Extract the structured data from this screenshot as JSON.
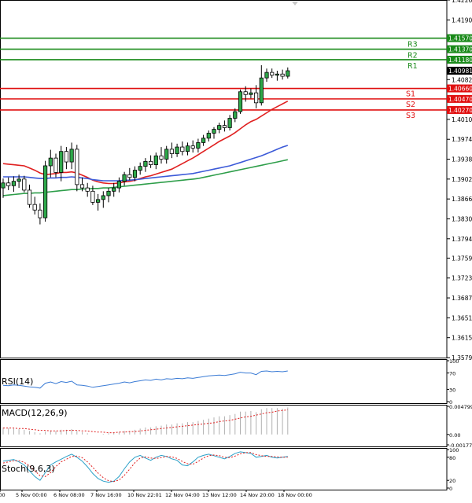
{
  "chart_data": {
    "type": "candlestick",
    "price_axis": {
      "min": 1.3579,
      "max": 1.4226,
      "ticks": [
        "1.42260",
        "1.41900",
        "1.41570",
        "1.41370",
        "1.41180",
        "1.40981",
        "1.40820",
        "1.40660",
        "1.40470",
        "1.40270",
        "1.40100",
        "1.39740",
        "1.39380",
        "1.39020",
        "1.38660",
        "1.38300",
        "1.37940",
        "1.37590",
        "1.37230",
        "1.36870",
        "1.36510",
        "1.36150",
        "1.35790"
      ],
      "tick_values": [
        1.4226,
        1.419,
        1.4157,
        1.4137,
        1.4118,
        1.40981,
        1.4082,
        1.4066,
        1.4047,
        1.4027,
        1.401,
        1.3974,
        1.3938,
        1.3902,
        1.3866,
        1.383,
        1.3794,
        1.3759,
        1.3723,
        1.3687,
        1.3651,
        1.3615,
        1.3579
      ]
    },
    "time_axis": {
      "labels": [
        "0:00",
        "5 Nov 00:00",
        "6 Nov 08:00",
        "7 Nov 16:00",
        "10 Nov 22:01",
        "12 Nov 04:00",
        "13 Nov 12:00",
        "14 Nov 20:00",
        "18 Nov 00:00"
      ]
    },
    "current_price": "1.40981",
    "levels": [
      {
        "name": "R3",
        "value": 1.4157,
        "label": "1.41570",
        "color": "#1a8a1a"
      },
      {
        "name": "R2",
        "value": 1.4137,
        "label": "1.41370",
        "color": "#1a8a1a"
      },
      {
        "name": "R1",
        "value": 1.4118,
        "label": "1.41180",
        "color": "#1a8a1a"
      },
      {
        "name": "S1",
        "value": 1.4066,
        "label": "1.40660",
        "color": "#e01010"
      },
      {
        "name": "S2",
        "value": 1.4047,
        "label": "1.40470",
        "color": "#e01010"
      },
      {
        "name": "S3",
        "value": 1.4027,
        "label": "1.40270",
        "color": "#e01010"
      }
    ],
    "candles": [
      {
        "o": 1.3886,
        "h": 1.3903,
        "l": 1.3868,
        "c": 1.3895
      },
      {
        "o": 1.3895,
        "h": 1.3905,
        "l": 1.3882,
        "c": 1.389
      },
      {
        "o": 1.389,
        "h": 1.3907,
        "l": 1.3879,
        "c": 1.3898
      },
      {
        "o": 1.3898,
        "h": 1.391,
        "l": 1.3886,
        "c": 1.3902
      },
      {
        "o": 1.3902,
        "h": 1.3908,
        "l": 1.3878,
        "c": 1.3882
      },
      {
        "o": 1.3882,
        "h": 1.3892,
        "l": 1.385,
        "c": 1.3856
      },
      {
        "o": 1.3856,
        "h": 1.387,
        "l": 1.3838,
        "c": 1.3846
      },
      {
        "o": 1.3846,
        "h": 1.3858,
        "l": 1.382,
        "c": 1.3832
      },
      {
        "o": 1.3832,
        "h": 1.3935,
        "l": 1.3825,
        "c": 1.3926
      },
      {
        "o": 1.3926,
        "h": 1.3955,
        "l": 1.3905,
        "c": 1.394
      },
      {
        "o": 1.394,
        "h": 1.3948,
        "l": 1.3905,
        "c": 1.3914
      },
      {
        "o": 1.3914,
        "h": 1.3962,
        "l": 1.3898,
        "c": 1.3952
      },
      {
        "o": 1.3952,
        "h": 1.396,
        "l": 1.392,
        "c": 1.3933
      },
      {
        "o": 1.3933,
        "h": 1.3968,
        "l": 1.392,
        "c": 1.3956
      },
      {
        "o": 1.3956,
        "h": 1.3964,
        "l": 1.388,
        "c": 1.3892
      },
      {
        "o": 1.3892,
        "h": 1.3905,
        "l": 1.388,
        "c": 1.3886
      },
      {
        "o": 1.3886,
        "h": 1.3895,
        "l": 1.387,
        "c": 1.388
      },
      {
        "o": 1.388,
        "h": 1.389,
        "l": 1.3855,
        "c": 1.386
      },
      {
        "o": 1.386,
        "h": 1.3875,
        "l": 1.3845,
        "c": 1.3865
      },
      {
        "o": 1.3865,
        "h": 1.388,
        "l": 1.385,
        "c": 1.3872
      },
      {
        "o": 1.3872,
        "h": 1.3886,
        "l": 1.386,
        "c": 1.388
      },
      {
        "o": 1.388,
        "h": 1.3895,
        "l": 1.387,
        "c": 1.3886
      },
      {
        "o": 1.3886,
        "h": 1.3905,
        "l": 1.3878,
        "c": 1.3898
      },
      {
        "o": 1.3898,
        "h": 1.3915,
        "l": 1.389,
        "c": 1.391
      },
      {
        "o": 1.391,
        "h": 1.3922,
        "l": 1.39,
        "c": 1.3905
      },
      {
        "o": 1.3905,
        "h": 1.3925,
        "l": 1.3898,
        "c": 1.3918
      },
      {
        "o": 1.3918,
        "h": 1.3932,
        "l": 1.391,
        "c": 1.3925
      },
      {
        "o": 1.3925,
        "h": 1.394,
        "l": 1.3915,
        "c": 1.3934
      },
      {
        "o": 1.3934,
        "h": 1.3945,
        "l": 1.3922,
        "c": 1.3928
      },
      {
        "o": 1.3928,
        "h": 1.395,
        "l": 1.392,
        "c": 1.3944
      },
      {
        "o": 1.3944,
        "h": 1.396,
        "l": 1.393,
        "c": 1.3938
      },
      {
        "o": 1.3938,
        "h": 1.3962,
        "l": 1.393,
        "c": 1.3956
      },
      {
        "o": 1.3956,
        "h": 1.3968,
        "l": 1.394,
        "c": 1.3948
      },
      {
        "o": 1.3948,
        "h": 1.3966,
        "l": 1.3942,
        "c": 1.396
      },
      {
        "o": 1.396,
        "h": 1.397,
        "l": 1.3945,
        "c": 1.3952
      },
      {
        "o": 1.3952,
        "h": 1.3968,
        "l": 1.3945,
        "c": 1.3962
      },
      {
        "o": 1.3962,
        "h": 1.3972,
        "l": 1.395,
        "c": 1.3958
      },
      {
        "o": 1.3958,
        "h": 1.3975,
        "l": 1.395,
        "c": 1.3968
      },
      {
        "o": 1.3968,
        "h": 1.3982,
        "l": 1.3962,
        "c": 1.3976
      },
      {
        "o": 1.3976,
        "h": 1.399,
        "l": 1.397,
        "c": 1.3985
      },
      {
        "o": 1.3985,
        "h": 1.3996,
        "l": 1.3975,
        "c": 1.3992
      },
      {
        "o": 1.3992,
        "h": 1.4004,
        "l": 1.3985,
        "c": 1.3999
      },
      {
        "o": 1.3999,
        "h": 1.4008,
        "l": 1.3988,
        "c": 1.3995
      },
      {
        "o": 1.3995,
        "h": 1.4018,
        "l": 1.399,
        "c": 1.4012
      },
      {
        "o": 1.4012,
        "h": 1.403,
        "l": 1.4005,
        "c": 1.4024
      },
      {
        "o": 1.4024,
        "h": 1.4064,
        "l": 1.402,
        "c": 1.406
      },
      {
        "o": 1.406,
        "h": 1.407,
        "l": 1.4042,
        "c": 1.4055
      },
      {
        "o": 1.4055,
        "h": 1.4066,
        "l": 1.4048,
        "c": 1.4058
      },
      {
        "o": 1.4058,
        "h": 1.4072,
        "l": 1.403,
        "c": 1.404
      },
      {
        "o": 1.404,
        "h": 1.4108,
        "l": 1.4035,
        "c": 1.4085
      },
      {
        "o": 1.4085,
        "h": 1.4102,
        "l": 1.4078,
        "c": 1.4095
      },
      {
        "o": 1.4095,
        "h": 1.4102,
        "l": 1.4085,
        "c": 1.409
      },
      {
        "o": 1.409,
        "h": 1.4098,
        "l": 1.408,
        "c": 1.4092
      },
      {
        "o": 1.4092,
        "h": 1.41,
        "l": 1.4082,
        "c": 1.4088
      },
      {
        "o": 1.4088,
        "h": 1.4104,
        "l": 1.4084,
        "c": 1.4098
      }
    ],
    "series": [
      {
        "name": "",
        "color": "#e02020",
        "values": [
          1.393,
          1.3929,
          1.3928,
          1.3927,
          1.3926,
          1.3922,
          1.3918,
          1.3913,
          1.391,
          1.3911,
          1.3912,
          1.3914,
          1.3914,
          1.3915,
          1.3913,
          1.3909,
          1.3905,
          1.39,
          1.3897,
          1.3895,
          1.3894,
          1.3894,
          1.3895,
          1.3897,
          1.3898,
          1.39,
          1.3903,
          1.3906,
          1.3908,
          1.3911,
          1.3914,
          1.3917,
          1.392,
          1.3925,
          1.393,
          1.3935,
          1.394,
          1.3946,
          1.3952,
          1.3958,
          1.3964,
          1.397,
          1.3975,
          1.398,
          1.3986,
          1.3993,
          1.4,
          1.4006,
          1.401,
          1.4016,
          1.4022,
          1.4028,
          1.4033,
          1.4038,
          1.4043
        ]
      },
      {
        "name": "",
        "color": "#3c5ad8",
        "values": [
          1.3906,
          1.3906,
          1.3906,
          1.3906,
          1.3906,
          1.3905,
          1.3904,
          1.3903,
          1.3903,
          1.3904,
          1.3904,
          1.3905,
          1.3905,
          1.3906,
          1.3905,
          1.3904,
          1.3903,
          1.3901,
          1.39,
          1.3899,
          1.3899,
          1.3899,
          1.3899,
          1.39,
          1.39,
          1.3901,
          1.3902,
          1.3903,
          1.3904,
          1.3905,
          1.3906,
          1.3907,
          1.3908,
          1.3909,
          1.391,
          1.3911,
          1.3912,
          1.3914,
          1.3916,
          1.3918,
          1.392,
          1.3922,
          1.3924,
          1.3926,
          1.3929,
          1.3932,
          1.3935,
          1.3938,
          1.3941,
          1.3944,
          1.3948,
          1.3952,
          1.3956,
          1.396,
          1.3963
        ]
      },
      {
        "name": "",
        "color": "#2e9e4a",
        "values": [
          1.3872,
          1.3873,
          1.3874,
          1.3875,
          1.3876,
          1.3876,
          1.3877,
          1.3877,
          1.3878,
          1.3879,
          1.388,
          1.3881,
          1.3882,
          1.3883,
          1.3883,
          1.3884,
          1.3884,
          1.3885,
          1.3885,
          1.3886,
          1.3886,
          1.3887,
          1.3888,
          1.3889,
          1.389,
          1.3891,
          1.3892,
          1.3893,
          1.3894,
          1.3895,
          1.3896,
          1.3897,
          1.3898,
          1.3899,
          1.39,
          1.3901,
          1.3902,
          1.3903,
          1.3905,
          1.3907,
          1.3909,
          1.3911,
          1.3913,
          1.3915,
          1.3917,
          1.3919,
          1.3921,
          1.3923,
          1.3925,
          1.3927,
          1.3929,
          1.3931,
          1.3933,
          1.3935,
          1.3937
        ]
      }
    ],
    "indicators": {
      "rsi": {
        "label": "RSI(14)",
        "ticks": [
          "100",
          "70",
          "30",
          "0"
        ],
        "tick_values": [
          100,
          70,
          30,
          0
        ],
        "color": "#3a7bd5",
        "values": [
          40,
          39,
          41,
          40,
          38,
          36,
          35,
          33,
          45,
          48,
          44,
          49,
          47,
          50,
          41,
          40,
          38,
          35,
          37,
          39,
          41,
          43,
          45,
          48,
          46,
          49,
          51,
          53,
          52,
          55,
          53,
          56,
          55,
          57,
          56,
          58,
          57,
          59,
          61,
          63,
          64,
          65,
          64,
          66,
          68,
          72,
          70,
          70,
          66,
          74,
          75,
          73,
          74,
          73,
          75
        ]
      },
      "macd": {
        "label": "MACD(12,26,9)",
        "ticks": [
          "0.004799",
          "0.00",
          "-0.001770"
        ],
        "tick_values": [
          0.004799,
          0,
          -0.00177
        ],
        "signal_color": "#e02020",
        "hist_color": "#b0b0b0",
        "histogram": [
          0.0012,
          0.0011,
          0.001,
          0.0009,
          0.0008,
          0.0006,
          0.0004,
          0.0002,
          0.0005,
          0.0007,
          0.0006,
          0.0008,
          0.0008,
          0.0009,
          0.0006,
          0.0004,
          0.0002,
          0.0,
          0.0,
          0.0001,
          0.0002,
          0.0003,
          0.0004,
          0.0006,
          0.0006,
          0.0008,
          0.001,
          0.0012,
          0.0012,
          0.0014,
          0.0015,
          0.0017,
          0.0017,
          0.0019,
          0.0019,
          0.0021,
          0.0021,
          0.0023,
          0.0025,
          0.0027,
          0.0029,
          0.0031,
          0.0031,
          0.0033,
          0.0035,
          0.0039,
          0.0039,
          0.004,
          0.0038,
          0.0043,
          0.0045,
          0.0045,
          0.0045,
          0.0044,
          0.0046
        ],
        "signal": [
          0.0011,
          0.0011,
          0.0011,
          0.001,
          0.001,
          0.0009,
          0.0008,
          0.0007,
          0.0007,
          0.0006,
          0.0006,
          0.0006,
          0.0007,
          0.0007,
          0.0007,
          0.0006,
          0.0006,
          0.0005,
          0.0004,
          0.0004,
          0.0003,
          0.0003,
          0.0004,
          0.0004,
          0.0005,
          0.0005,
          0.0006,
          0.0007,
          0.0008,
          0.0009,
          0.001,
          0.0011,
          0.0012,
          0.0013,
          0.0014,
          0.0015,
          0.0016,
          0.0017,
          0.0018,
          0.0019,
          0.002,
          0.0022,
          0.0023,
          0.0024,
          0.0026,
          0.0028,
          0.003,
          0.0031,
          0.0033,
          0.0035,
          0.0037,
          0.0038,
          0.004,
          0.0041,
          0.0042
        ]
      },
      "stoch": {
        "label": "Stoch(9,6,3)",
        "ticks": [
          "100",
          "80",
          "20",
          "0"
        ],
        "tick_values": [
          100,
          80,
          20,
          0
        ],
        "main_color": "#2aa0c8",
        "signal_color": "#e02020",
        "main": [
          70,
          72,
          74,
          68,
          60,
          45,
          30,
          20,
          40,
          60,
          68,
          75,
          82,
          88,
          80,
          70,
          55,
          38,
          25,
          18,
          15,
          18,
          30,
          50,
          68,
          80,
          85,
          78,
          72,
          80,
          85,
          82,
          76,
          72,
          60,
          58,
          68,
          80,
          85,
          88,
          84,
          80,
          76,
          82,
          90,
          94,
          92,
          90,
          80,
          82,
          85,
          80,
          78,
          80,
          82
        ],
        "signal": [
          65,
          68,
          71,
          71,
          67,
          58,
          45,
          32,
          30,
          40,
          56,
          68,
          75,
          82,
          83,
          79,
          68,
          54,
          39,
          27,
          19,
          17,
          21,
          33,
          49,
          66,
          78,
          81,
          78,
          77,
          79,
          82,
          81,
          77,
          69,
          63,
          62,
          69,
          78,
          84,
          86,
          84,
          80,
          79,
          83,
          89,
          92,
          92,
          87,
          84,
          82,
          82,
          81,
          80,
          80
        ]
      }
    }
  }
}
